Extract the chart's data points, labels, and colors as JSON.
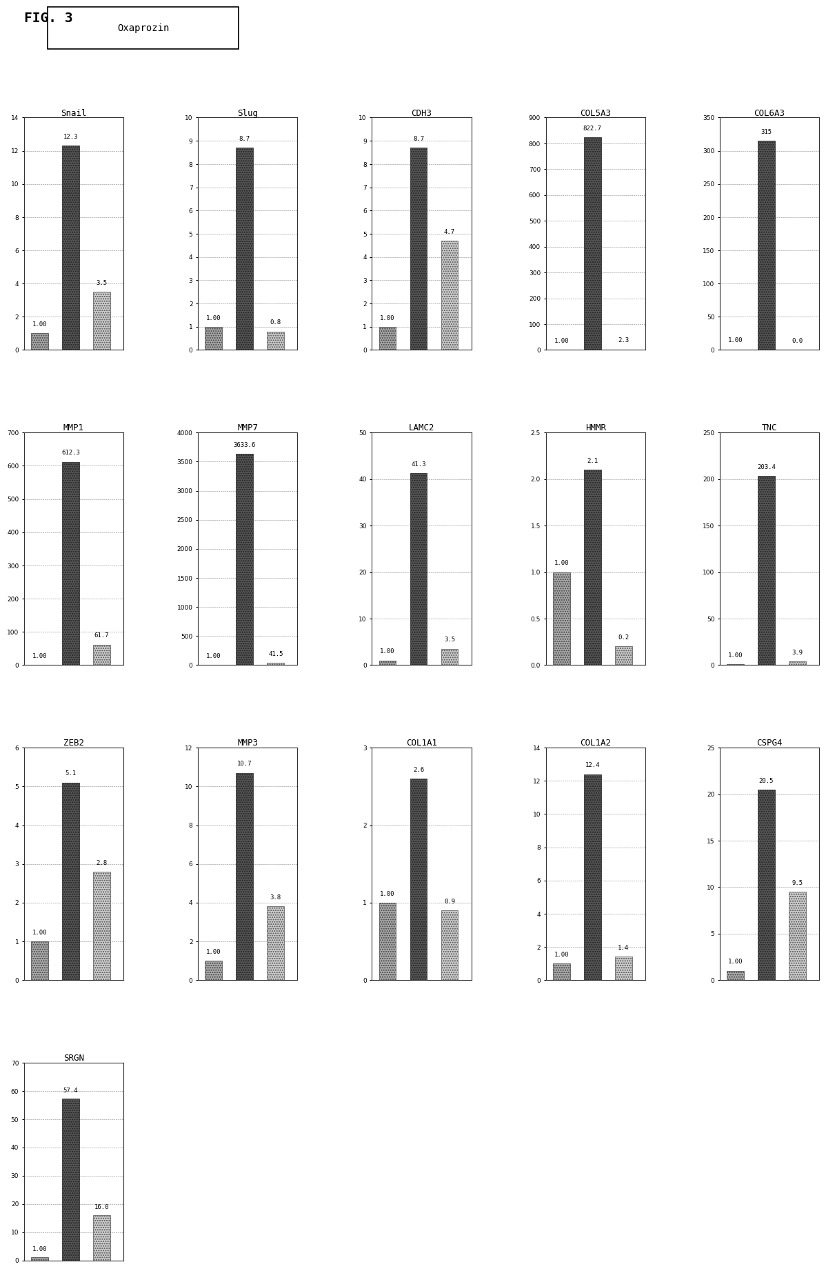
{
  "fig_title": "FIG. 3",
  "legend_label": "Oxaprozin",
  "charts": [
    {
      "title": "Snail",
      "ylim": [
        0,
        14
      ],
      "yticks": [
        0,
        2,
        4,
        6,
        8,
        10,
        12,
        14
      ],
      "bars": [
        1.0,
        12.3,
        3.5
      ],
      "bar_labels": [
        "1.00",
        "12.3",
        "3.5"
      ]
    },
    {
      "title": "Slug",
      "ylim": [
        0,
        10
      ],
      "yticks": [
        0,
        1,
        2,
        3,
        4,
        5,
        6,
        7,
        8,
        9,
        10
      ],
      "bars": [
        1.0,
        8.7,
        0.8
      ],
      "bar_labels": [
        "1.00",
        "8.7",
        "0.8"
      ]
    },
    {
      "title": "CDH3",
      "ylim": [
        0,
        10
      ],
      "yticks": [
        0,
        1,
        2,
        3,
        4,
        5,
        6,
        7,
        8,
        9,
        10
      ],
      "bars": [
        1.0,
        8.7,
        4.7
      ],
      "bar_labels": [
        "1.00",
        "8.7",
        "4.7"
      ]
    },
    {
      "title": "COL5A3",
      "ylim": [
        0,
        900
      ],
      "yticks": [
        0,
        100,
        200,
        300,
        400,
        500,
        600,
        700,
        800,
        900
      ],
      "bars": [
        1.0,
        822.7,
        2.3
      ],
      "bar_labels": [
        "1.00",
        "822.7",
        "2.3"
      ]
    },
    {
      "title": "COL6A3",
      "ylim": [
        0,
        350
      ],
      "yticks": [
        0,
        50,
        100,
        150,
        200,
        250,
        300,
        350
      ],
      "bars": [
        1.0,
        315,
        0.0
      ],
      "bar_labels": [
        "1.00",
        "315",
        "0.0"
      ]
    },
    {
      "title": "MMP1",
      "ylim": [
        0,
        700
      ],
      "yticks": [
        0,
        100,
        200,
        300,
        400,
        500,
        600,
        700
      ],
      "bars": [
        1.0,
        612.3,
        61.7
      ],
      "bar_labels": [
        "1.00",
        "612.3",
        "61.7"
      ]
    },
    {
      "title": "MMP7",
      "ylim": [
        0,
        4000
      ],
      "yticks": [
        0,
        500,
        1000,
        1500,
        2000,
        2500,
        3000,
        3500,
        4000
      ],
      "bars": [
        1.0,
        3633.6,
        41.5
      ],
      "bar_labels": [
        "1.00",
        "3633.6",
        "41.5"
      ]
    },
    {
      "title": "LAMC2",
      "ylim": [
        0,
        50
      ],
      "yticks": [
        0,
        10,
        20,
        30,
        40,
        50
      ],
      "bars": [
        1.0,
        41.3,
        3.5
      ],
      "bar_labels": [
        "1.00",
        "41.3",
        "3.5"
      ]
    },
    {
      "title": "HMMR",
      "ylim": [
        0.0,
        2.5
      ],
      "yticks": [
        0.0,
        0.5,
        1.0,
        1.5,
        2.0,
        2.5
      ],
      "bars": [
        1.0,
        2.1,
        0.2
      ],
      "bar_labels": [
        "1.00",
        "2.1",
        "0.2"
      ]
    },
    {
      "title": "TNC",
      "ylim": [
        0,
        250
      ],
      "yticks": [
        0,
        50,
        100,
        150,
        200,
        250
      ],
      "bars": [
        1.0,
        203.4,
        3.9
      ],
      "bar_labels": [
        "1.00",
        "203.4",
        "3.9"
      ]
    },
    {
      "title": "ZEB2",
      "ylim": [
        0,
        6
      ],
      "yticks": [
        0,
        1,
        2,
        3,
        4,
        5,
        6
      ],
      "bars": [
        1.0,
        5.1,
        2.8
      ],
      "bar_labels": [
        "1.00",
        "5.1",
        "2.8"
      ]
    },
    {
      "title": "MMP3",
      "ylim": [
        0,
        12
      ],
      "yticks": [
        0,
        2,
        4,
        6,
        8,
        10,
        12
      ],
      "bars": [
        1.0,
        10.7,
        3.8
      ],
      "bar_labels": [
        "1.00",
        "10.7",
        "3.8"
      ]
    },
    {
      "title": "COL1A1",
      "ylim": [
        0,
        3
      ],
      "yticks": [
        0,
        1,
        2,
        3
      ],
      "bars": [
        1.0,
        2.6,
        0.9
      ],
      "bar_labels": [
        "1.00",
        "2.6",
        "0.9"
      ]
    },
    {
      "title": "COL1A2",
      "ylim": [
        0,
        14
      ],
      "yticks": [
        0,
        2,
        4,
        6,
        8,
        10,
        12,
        14
      ],
      "bars": [
        1.0,
        12.4,
        1.4
      ],
      "bar_labels": [
        "1.00",
        "12.4",
        "1.4"
      ]
    },
    {
      "title": "CSPG4",
      "ylim": [
        0,
        25
      ],
      "yticks": [
        0,
        5,
        10,
        15,
        20,
        25
      ],
      "bars": [
        1.0,
        20.5,
        9.5
      ],
      "bar_labels": [
        "1.00",
        "20.5",
        "9.5"
      ]
    },
    {
      "title": "SRGN",
      "ylim": [
        0,
        70
      ],
      "yticks": [
        0,
        10,
        20,
        30,
        40,
        50,
        60,
        70
      ],
      "bars": [
        1.0,
        57.4,
        16.0
      ],
      "bar_labels": [
        "1.00",
        "57.4",
        "16.0"
      ]
    }
  ],
  "bar_colors": [
    "#999999",
    "#444444",
    "#bbbbbb"
  ],
  "bar_width": 0.55,
  "bar_positions": [
    0.5,
    1.5,
    2.5
  ],
  "xlim": [
    0,
    3.2
  ],
  "background_color": "#ffffff",
  "fig_background": "#f0f0f0",
  "grid_color": "#888888",
  "font_size_title": 9,
  "font_size_label": 6.5,
  "font_size_tick": 6.5
}
